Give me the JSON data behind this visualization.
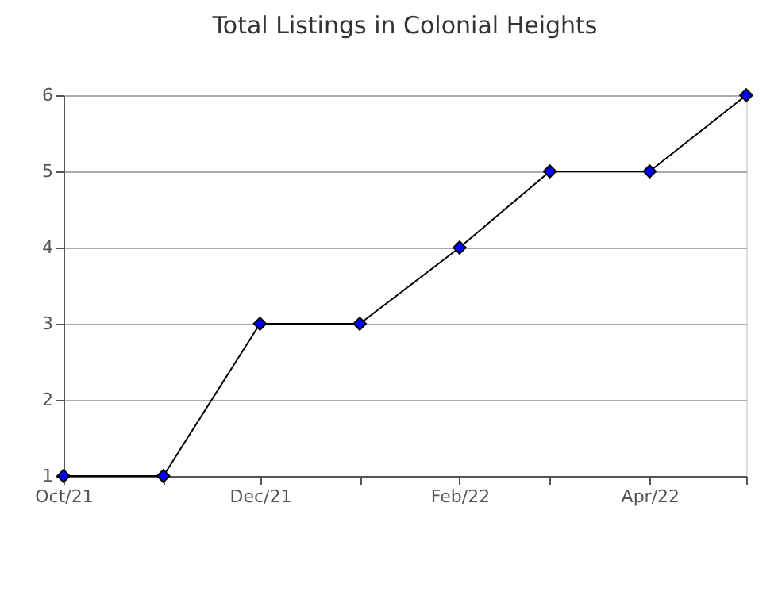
{
  "chart_data": {
    "type": "line",
    "title": "Total Listings in Colonial Heights",
    "x": [
      "2021-10",
      "2021-11",
      "2021-12",
      "2022-01",
      "2022-02",
      "2022-03",
      "2022-04",
      "2022-05"
    ],
    "series": [
      {
        "color": "#000000",
        "colors": [
          "#0000ff",
          "#0000ff",
          "#0000ff",
          "#0000ff",
          "#0000ff",
          "#0000ff",
          "#0000ff",
          "#0000ff"
        ],
        "values": [
          1,
          1,
          3,
          3,
          4,
          5,
          5,
          6
        ]
      }
    ],
    "xlim": [
      "2021-10",
      "2022-05"
    ],
    "xticks": [
      {
        "value": "2021-10",
        "label": "Oct/21"
      },
      {
        "value": "2021-11",
        "label": null
      },
      {
        "value": "2021-12",
        "label": "Dec/21"
      },
      {
        "value": "2022-01",
        "label": null
      },
      {
        "value": "2022-02",
        "label": "Feb/22"
      },
      {
        "value": "2022-03",
        "label": null
      },
      {
        "value": "2022-04",
        "label": "Apr/22"
      },
      {
        "value": "2022-05",
        "label": null
      }
    ],
    "ylim": [
      1,
      6
    ],
    "yticks": [
      1,
      2,
      3,
      4,
      5,
      6
    ],
    "grid": "y",
    "marker": "diamond",
    "line_style": "solid"
  }
}
